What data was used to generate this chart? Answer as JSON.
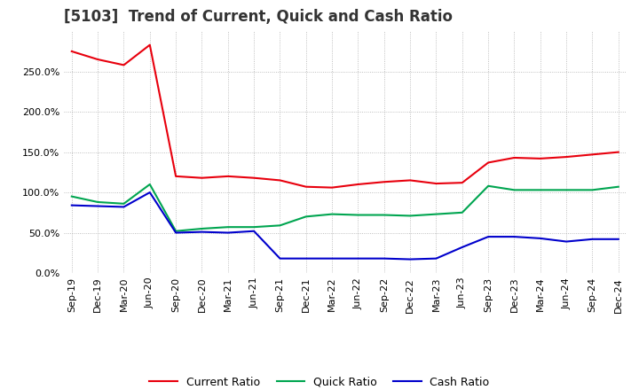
{
  "title": "[5103]  Trend of Current, Quick and Cash Ratio",
  "x_labels": [
    "Sep-19",
    "Dec-19",
    "Mar-20",
    "Jun-20",
    "Sep-20",
    "Dec-20",
    "Mar-21",
    "Jun-21",
    "Sep-21",
    "Dec-21",
    "Mar-22",
    "Jun-22",
    "Sep-22",
    "Dec-22",
    "Mar-23",
    "Jun-23",
    "Sep-23",
    "Dec-23",
    "Mar-24",
    "Jun-24",
    "Sep-24",
    "Dec-24"
  ],
  "current_ratio": [
    275,
    265,
    258,
    283,
    120,
    118,
    120,
    118,
    115,
    107,
    106,
    110,
    113,
    115,
    111,
    112,
    137,
    143,
    142,
    144,
    147,
    150
  ],
  "quick_ratio": [
    95,
    88,
    86,
    110,
    52,
    55,
    57,
    57,
    59,
    70,
    73,
    72,
    72,
    71,
    73,
    75,
    108,
    103,
    103,
    103,
    103,
    107
  ],
  "cash_ratio": [
    84,
    83,
    82,
    100,
    50,
    51,
    50,
    52,
    18,
    18,
    18,
    18,
    18,
    17,
    18,
    32,
    45,
    45,
    43,
    39,
    42,
    42
  ],
  "ylim": [
    0,
    300
  ],
  "yticks": [
    0,
    50,
    100,
    150,
    200,
    250
  ],
  "current_color": "#e8000d",
  "quick_color": "#00a550",
  "cash_color": "#0000cc",
  "background_color": "#ffffff",
  "grid_color": "#999999",
  "title_fontsize": 12,
  "title_color": "#333333",
  "legend_fontsize": 9,
  "axis_fontsize": 8
}
